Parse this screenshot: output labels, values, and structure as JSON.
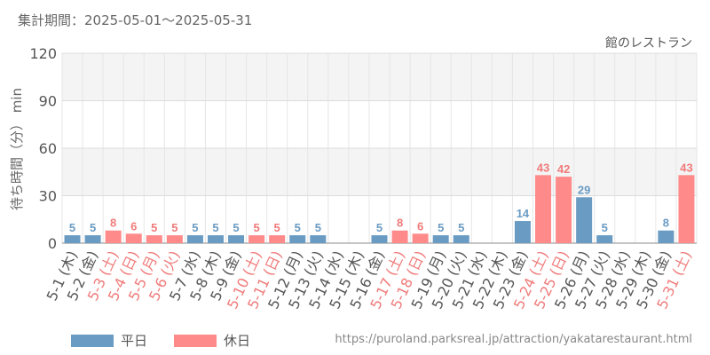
{
  "header": {
    "period": "集計期間：2025-05-01～2025-05-31"
  },
  "footer": {
    "url": "https://puroland.parksreal.jp/attraction/yakatarestaurant.html"
  },
  "colors": {
    "weekday": "#6a9bc3",
    "holiday": "#ff8a8a",
    "holiday_label": "#f07a7a",
    "text": "#555555"
  },
  "chart_data": {
    "type": "bar",
    "title": "館のレストラン",
    "ylabel": "待ち時間（分） min",
    "ylim": [
      0,
      120
    ],
    "yticks": [
      0,
      30,
      60,
      90,
      120
    ],
    "grid": true,
    "legend_position": "bottom-left",
    "categories": [
      "5-1 (木)",
      "5-2 (金)",
      "5-3 (土)",
      "5-4 (日)",
      "5-5 (月)",
      "5-6 (火)",
      "5-7 (水)",
      "5-8 (木)",
      "5-9 (金)",
      "5-10 (土)",
      "5-11 (日)",
      "5-12 (月)",
      "5-13 (火)",
      "5-14 (水)",
      "5-15 (木)",
      "5-16 (金)",
      "5-17 (土)",
      "5-18 (日)",
      "5-19 (月)",
      "5-20 (火)",
      "5-21 (水)",
      "5-22 (木)",
      "5-23 (金)",
      "5-24 (土)",
      "5-25 (日)",
      "5-26 (月)",
      "5-27 (火)",
      "5-28 (水)",
      "5-29 (木)",
      "5-30 (金)",
      "5-31 (土)"
    ],
    "values": [
      5,
      5,
      8,
      6,
      5,
      5,
      5,
      5,
      5,
      5,
      5,
      5,
      5,
      null,
      null,
      5,
      8,
      6,
      5,
      5,
      null,
      null,
      14,
      43,
      42,
      29,
      5,
      null,
      null,
      8,
      43
    ],
    "day_type": [
      "weekday",
      "weekday",
      "holiday",
      "holiday",
      "holiday",
      "holiday",
      "weekday",
      "weekday",
      "weekday",
      "holiday",
      "holiday",
      "weekday",
      "weekday",
      "weekday",
      "weekday",
      "weekday",
      "holiday",
      "holiday",
      "weekday",
      "weekday",
      "weekday",
      "weekday",
      "weekday",
      "holiday",
      "holiday",
      "weekday",
      "weekday",
      "weekday",
      "weekday",
      "weekday",
      "holiday"
    ],
    "legend": [
      {
        "key": "weekday",
        "label": "平日"
      },
      {
        "key": "holiday",
        "label": "休日"
      }
    ]
  }
}
